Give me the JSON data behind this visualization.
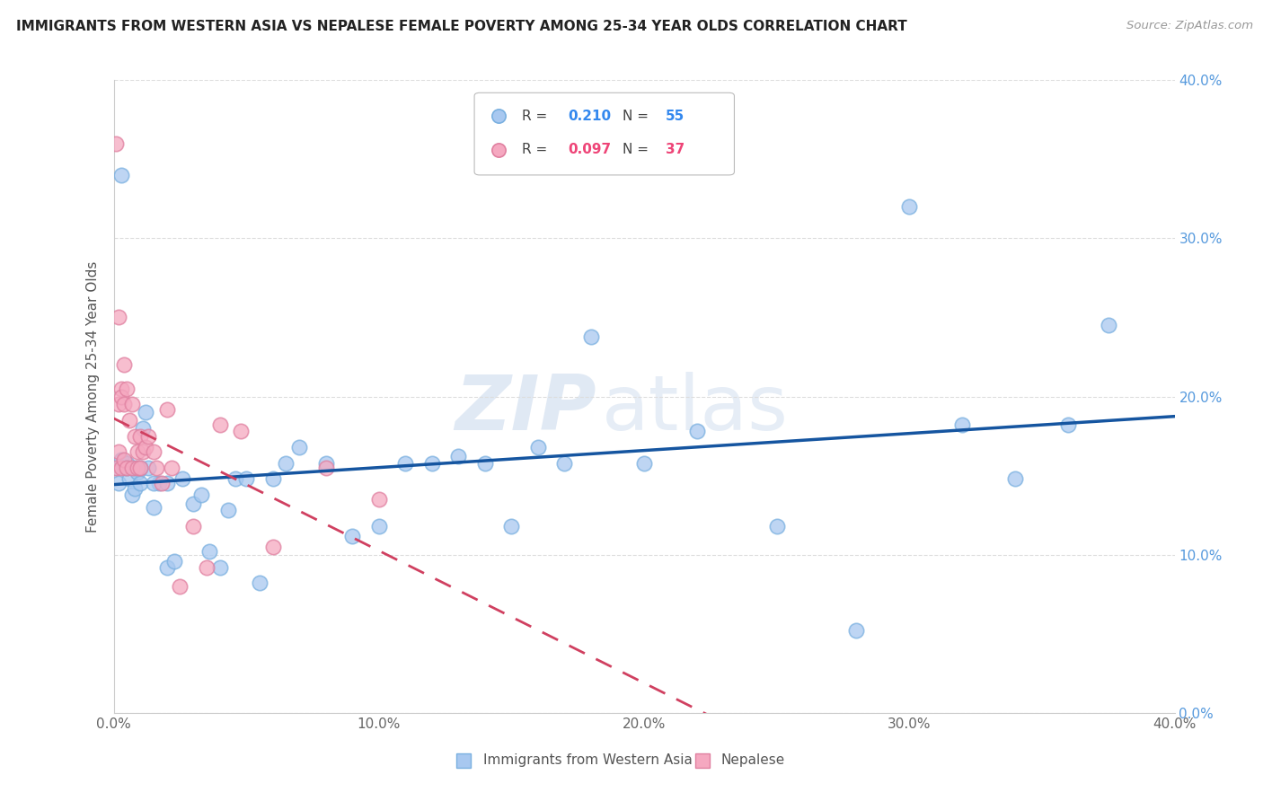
{
  "title": "IMMIGRANTS FROM WESTERN ASIA VS NEPALESE FEMALE POVERTY AMONG 25-34 YEAR OLDS CORRELATION CHART",
  "source": "Source: ZipAtlas.com",
  "ylabel": "Female Poverty Among 25-34 Year Olds",
  "legend_label1": "Immigrants from Western Asia",
  "legend_label2": "Nepalese",
  "R1": 0.21,
  "N1": 55,
  "R2": 0.097,
  "N2": 37,
  "blue_color": "#a8c8f0",
  "pink_color": "#f5a8c0",
  "blue_line_color": "#1555a0",
  "pink_line_color": "#d04060",
  "xlim": [
    0.0,
    0.4
  ],
  "ylim": [
    0.0,
    0.4
  ],
  "yticks": [
    0.0,
    0.1,
    0.2,
    0.3,
    0.4
  ],
  "ytick_labels": [
    "0.0%",
    "10.0%",
    "20.0%",
    "30.0%",
    "40.0%"
  ],
  "xticks": [
    0.0,
    0.1,
    0.2,
    0.3,
    0.4
  ],
  "xtick_labels": [
    "0.0%",
    "10.0%",
    "20.0%",
    "30.0%",
    "40.0%"
  ],
  "blue_x": [
    0.001,
    0.002,
    0.003,
    0.004,
    0.005,
    0.006,
    0.007,
    0.008,
    0.009,
    0.01,
    0.011,
    0.012,
    0.013,
    0.015,
    0.017,
    0.02,
    0.023,
    0.026,
    0.03,
    0.033,
    0.036,
    0.04,
    0.043,
    0.046,
    0.05,
    0.055,
    0.06,
    0.065,
    0.07,
    0.08,
    0.09,
    0.1,
    0.11,
    0.12,
    0.13,
    0.14,
    0.15,
    0.16,
    0.17,
    0.18,
    0.2,
    0.22,
    0.25,
    0.28,
    0.3,
    0.32,
    0.34,
    0.36,
    0.375,
    0.005,
    0.008,
    0.01,
    0.015,
    0.02,
    0.003
  ],
  "blue_y": [
    0.155,
    0.145,
    0.16,
    0.155,
    0.158,
    0.148,
    0.138,
    0.142,
    0.152,
    0.145,
    0.18,
    0.19,
    0.155,
    0.13,
    0.145,
    0.092,
    0.096,
    0.148,
    0.132,
    0.138,
    0.102,
    0.092,
    0.128,
    0.148,
    0.148,
    0.082,
    0.148,
    0.158,
    0.168,
    0.158,
    0.112,
    0.118,
    0.158,
    0.158,
    0.162,
    0.158,
    0.118,
    0.168,
    0.158,
    0.238,
    0.158,
    0.178,
    0.118,
    0.052,
    0.32,
    0.182,
    0.148,
    0.182,
    0.245,
    0.155,
    0.155,
    0.155,
    0.145,
    0.145,
    0.34
  ],
  "pink_x": [
    0.001,
    0.001,
    0.002,
    0.002,
    0.002,
    0.003,
    0.003,
    0.003,
    0.004,
    0.004,
    0.004,
    0.005,
    0.005,
    0.006,
    0.007,
    0.007,
    0.008,
    0.009,
    0.009,
    0.01,
    0.01,
    0.011,
    0.012,
    0.013,
    0.015,
    0.016,
    0.018,
    0.02,
    0.022,
    0.025,
    0.03,
    0.035,
    0.04,
    0.048,
    0.06,
    0.08,
    0.1
  ],
  "pink_y": [
    0.36,
    0.155,
    0.25,
    0.195,
    0.165,
    0.205,
    0.2,
    0.155,
    0.22,
    0.195,
    0.16,
    0.205,
    0.155,
    0.185,
    0.195,
    0.155,
    0.175,
    0.165,
    0.155,
    0.175,
    0.155,
    0.165,
    0.168,
    0.175,
    0.165,
    0.155,
    0.145,
    0.192,
    0.155,
    0.08,
    0.118,
    0.092,
    0.182,
    0.178,
    0.105,
    0.155,
    0.135
  ]
}
